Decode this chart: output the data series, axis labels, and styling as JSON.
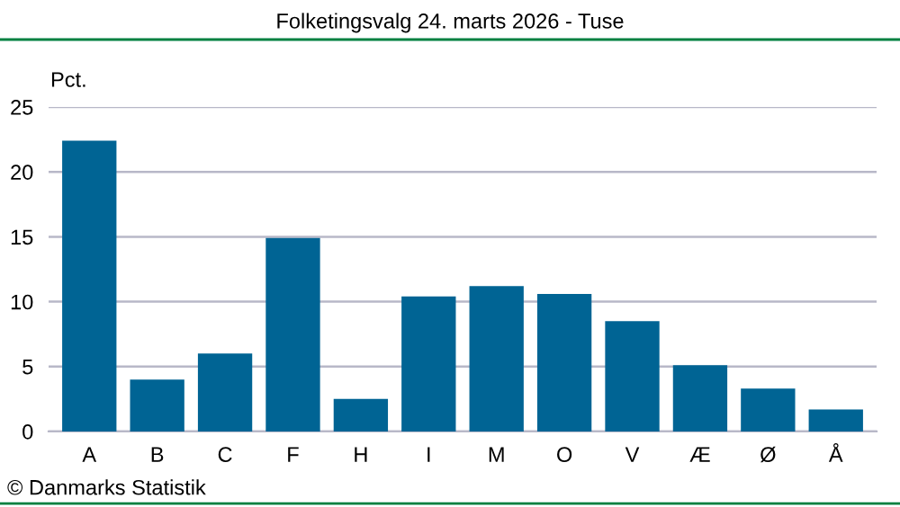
{
  "chart_data": {
    "type": "bar",
    "title": "Folketingsvalg 24. marts 2026 - Tuse",
    "ylabel": "Pct.",
    "categories": [
      "A",
      "B",
      "C",
      "F",
      "H",
      "I",
      "M",
      "O",
      "V",
      "Æ",
      "Ø",
      "Å"
    ],
    "values": [
      22.4,
      4.0,
      6.0,
      14.9,
      2.5,
      10.4,
      11.2,
      10.6,
      8.5,
      5.1,
      3.3,
      1.7
    ],
    "color": "#006494",
    "ylim": [
      0,
      25
    ],
    "yticks": [
      0,
      5,
      10,
      15,
      20,
      25
    ],
    "grid": "y",
    "legend": false,
    "annotations": [
      "© Danmarks Statistik"
    ]
  }
}
